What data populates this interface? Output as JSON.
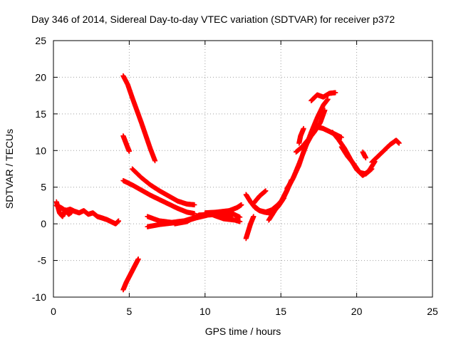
{
  "chart_data": {
    "type": "scatter",
    "title": "Day 346 of 2014, Sidereal Day-to-day VTEC variation (SDTVAR) for receiver p372",
    "xlabel": "GPS time / hours",
    "ylabel": "SDTVAR / TECUs",
    "xlim": [
      0,
      25
    ],
    "ylim": [
      -10,
      25
    ],
    "xticks": [
      "0",
      "5",
      "10",
      "15",
      "20",
      "25"
    ],
    "yticks": [
      "-10",
      "-5",
      "0",
      "5",
      "10",
      "15",
      "20",
      "25"
    ],
    "grid": true,
    "marker": "+",
    "color": "#ff0000",
    "segments": [
      {
        "x": [
          0.2,
          0.5,
          0.8,
          1.1,
          1.4,
          1.7,
          2.0,
          2.3,
          2.6,
          2.9,
          3.2,
          3.5,
          3.8,
          4.1,
          4.3
        ],
        "y": [
          2.5,
          2.2,
          1.8,
          2.0,
          1.7,
          1.5,
          1.8,
          1.3,
          1.5,
          1.0,
          0.8,
          0.6,
          0.3,
          0.0,
          0.4
        ]
      },
      {
        "x": [
          0.2,
          0.4,
          0.6,
          0.8,
          1.0,
          1.2
        ],
        "y": [
          3.0,
          1.5,
          1.0,
          1.9,
          1.3,
          1.6
        ]
      },
      {
        "x": [
          4.6,
          4.9,
          5.2,
          5.5,
          5.8,
          6.1,
          6.4,
          6.7
        ],
        "y": [
          20.2,
          19.0,
          17.2,
          15.5,
          13.8,
          12.0,
          10.2,
          8.6
        ]
      },
      {
        "x": [
          4.6,
          4.75,
          4.9,
          5.0
        ],
        "y": [
          12.0,
          11.2,
          10.4,
          9.9
        ]
      },
      {
        "x": [
          4.6,
          5.2,
          5.8,
          6.4,
          7.0,
          7.6,
          8.2,
          8.8,
          9.3
        ],
        "y": [
          5.9,
          5.3,
          4.6,
          3.9,
          3.3,
          2.7,
          2.1,
          1.6,
          1.4
        ]
      },
      {
        "x": [
          5.2,
          5.8,
          6.4,
          7.0,
          7.6,
          8.2,
          8.8,
          9.3
        ],
        "y": [
          7.5,
          6.3,
          5.3,
          4.5,
          3.8,
          3.1,
          2.7,
          2.6
        ]
      },
      {
        "x": [
          4.6,
          4.8,
          5.0,
          5.2,
          5.4,
          5.6
        ],
        "y": [
          -9.0,
          -8.0,
          -7.2,
          -6.4,
          -5.6,
          -4.8
        ]
      },
      {
        "x": [
          6.2,
          7.0,
          7.8,
          8.6,
          9.4,
          10.2,
          11.0,
          11.8,
          12.3
        ],
        "y": [
          1.0,
          0.4,
          0.2,
          0.4,
          0.9,
          1.4,
          1.6,
          1.4,
          0.9
        ]
      },
      {
        "x": [
          6.2,
          7.0,
          7.8,
          8.6,
          9.4,
          10.2,
          11.0,
          11.8
        ],
        "y": [
          -0.4,
          -0.1,
          0.1,
          0.3,
          0.8,
          1.2,
          1.3,
          1.0
        ]
      },
      {
        "x": [
          8.0,
          8.8,
          9.6,
          10.4,
          11.2,
          12.0,
          12.3
        ],
        "y": [
          0.0,
          0.3,
          1.2,
          1.3,
          0.7,
          0.5,
          0.3
        ]
      },
      {
        "x": [
          10.0,
          10.8,
          11.6,
          12.1,
          12.4
        ],
        "y": [
          1.5,
          1.6,
          1.8,
          2.2,
          2.6
        ]
      },
      {
        "x": [
          12.7,
          12.85,
          13.0,
          13.2
        ],
        "y": [
          -2.0,
          -1.0,
          0.0,
          1.0
        ]
      },
      {
        "x": [
          12.7,
          13.0,
          13.3,
          13.6,
          13.9,
          14.2,
          14.5,
          14.8,
          15.1,
          15.4,
          15.7
        ],
        "y": [
          4.0,
          3.0,
          2.2,
          1.8,
          1.6,
          1.5,
          1.7,
          2.3,
          3.2,
          4.5,
          6.0
        ]
      },
      {
        "x": [
          13.2,
          13.6,
          14.0,
          14.4,
          14.8,
          15.2
        ],
        "y": [
          2.5,
          1.8,
          1.6,
          1.9,
          2.6,
          3.5
        ]
      },
      {
        "x": [
          13.2,
          13.6,
          14.0
        ],
        "y": [
          2.8,
          3.8,
          4.5
        ]
      },
      {
        "x": [
          14.2,
          14.6,
          15.0,
          15.4,
          15.8,
          16.2,
          16.6,
          17.0,
          17.4,
          17.8,
          18.1
        ],
        "y": [
          0.5,
          1.8,
          3.0,
          4.6,
          6.2,
          8.2,
          10.3,
          12.5,
          14.5,
          16.2,
          17.0
        ]
      },
      {
        "x": [
          15.4,
          15.8,
          16.2,
          16.6,
          17.0,
          17.4,
          17.8,
          18.2,
          18.6,
          19.0
        ],
        "y": [
          4.8,
          6.2,
          8.0,
          10.5,
          12.0,
          13.2,
          13.0,
          12.6,
          12.2,
          11.8
        ]
      },
      {
        "x": [
          16.0,
          16.4,
          16.8,
          17.2,
          17.6,
          17.9
        ],
        "y": [
          9.8,
          10.5,
          11.5,
          12.5,
          13.8,
          15.5
        ]
      },
      {
        "x": [
          17.0,
          17.4,
          17.8,
          18.2,
          18.6
        ],
        "y": [
          16.8,
          17.6,
          17.3,
          17.8,
          17.9
        ]
      },
      {
        "x": [
          16.2,
          16.3,
          16.5
        ],
        "y": [
          11.0,
          12.0,
          13.0
        ]
      },
      {
        "x": [
          18.4,
          18.8,
          19.2,
          19.6,
          20.0,
          20.4,
          20.8,
          21.2
        ],
        "y": [
          12.5,
          11.5,
          10.3,
          8.8,
          7.4,
          6.6,
          7.2,
          8.5
        ]
      },
      {
        "x": [
          19.0,
          19.4,
          19.8,
          20.2,
          20.6,
          21.0
        ],
        "y": [
          10.5,
          9.2,
          8.2,
          7.0,
          6.8,
          7.5
        ]
      },
      {
        "x": [
          20.4,
          20.6
        ],
        "y": [
          9.8,
          9.0
        ]
      },
      {
        "x": [
          21.0,
          21.4,
          21.8,
          22.2,
          22.6,
          22.8
        ],
        "y": [
          8.4,
          9.2,
          10.0,
          10.8,
          11.4,
          11.0
        ]
      }
    ]
  }
}
